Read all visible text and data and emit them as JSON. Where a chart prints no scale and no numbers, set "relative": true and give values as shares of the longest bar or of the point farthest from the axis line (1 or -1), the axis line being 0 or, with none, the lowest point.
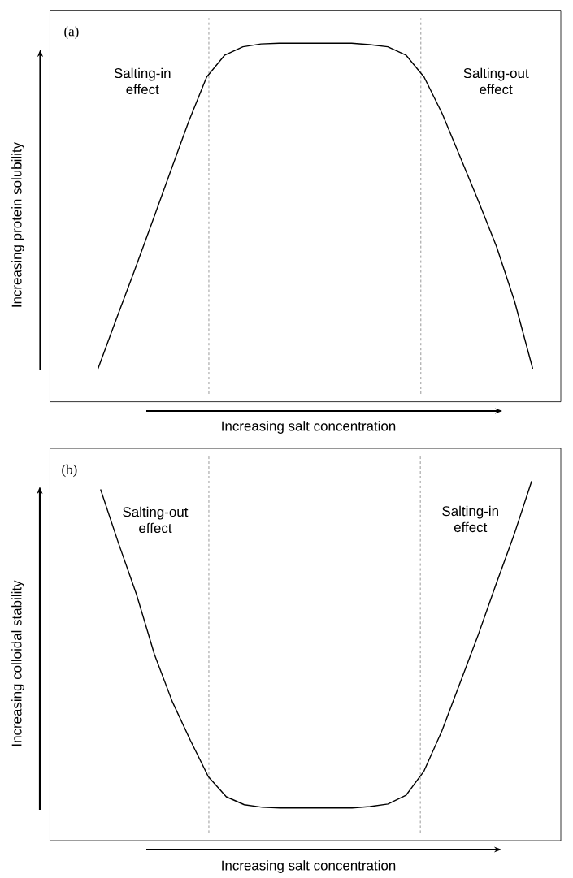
{
  "chart_data": [
    {
      "type": "line",
      "title": "(a)",
      "xlabel": "Increasing salt concentration",
      "ylabel": "Increasing protein solubility",
      "relative": true,
      "color": "#000000",
      "line_style": "solid",
      "tick_labels": false,
      "annotations": [
        "Salting-in effect",
        "Salting-out effect"
      ],
      "categories": [
        null,
        null,
        null,
        null,
        null,
        null,
        null,
        null,
        null,
        null,
        null,
        null,
        null,
        null,
        null,
        null,
        null,
        null,
        null,
        null,
        null,
        null,
        null,
        null,
        null
      ],
      "values": [
        0.092,
        0.229,
        0.364,
        0.502,
        0.642,
        0.781,
        0.906,
        0.967,
        0.99,
        0.998,
        1,
        1,
        1,
        1,
        1,
        0.996,
        0.99,
        0.967,
        0.906,
        0.804,
        0.682,
        0.56,
        0.433,
        0.28,
        0.092
      ]
    },
    {
      "type": "line",
      "title": "(b)",
      "xlabel": "Increasing salt concentration",
      "ylabel": "Increasing colloidal stability",
      "relative": true,
      "color": "#000000",
      "line_style": "solid",
      "tick_labels": false,
      "annotations": [
        "Salting-out effect",
        "Salting-in effect"
      ],
      "categories": [
        null,
        null,
        null,
        null,
        null,
        null,
        null,
        null,
        null,
        null,
        null,
        null,
        null,
        null,
        null,
        null,
        null,
        null,
        null,
        null,
        null,
        null,
        null,
        null,
        null
      ],
      "values": [
        0.977,
        0.827,
        0.685,
        0.518,
        0.386,
        0.279,
        0.178,
        0.122,
        0.1,
        0.093,
        0.091,
        0.091,
        0.091,
        0.091,
        0.091,
        0.095,
        0.102,
        0.126,
        0.193,
        0.305,
        0.437,
        0.569,
        0.711,
        0.848,
        1
      ]
    }
  ]
}
